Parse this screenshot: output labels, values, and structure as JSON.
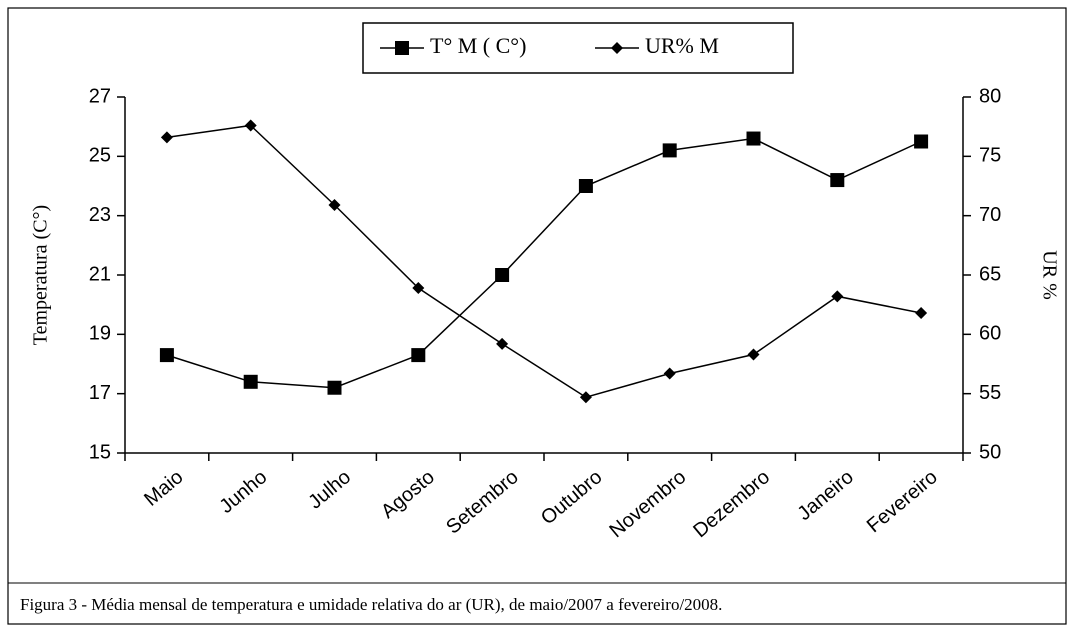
{
  "chart_data": {
    "type": "line",
    "categories": [
      "Maio",
      "Junho",
      "Julho",
      "Agosto",
      "Setembro",
      "Outubro",
      "Novembro",
      "Dezembro",
      "Janeiro",
      "Fevereiro"
    ],
    "series": [
      {
        "name": "T° M ( C°)",
        "color": "#000000",
        "marker": "square",
        "values": [
          18.3,
          17.4,
          17.2,
          18.3,
          21.0,
          24.0,
          25.2,
          25.6,
          24.2,
          25.5
        ]
      },
      {
        "name": "UR% M",
        "color": "#000000",
        "marker": "diamond",
        "axis": "y2",
        "values": [
          76.6,
          77.6,
          70.9,
          63.9,
          59.2,
          54.7,
          56.7,
          58.3,
          63.2,
          61.8
        ]
      }
    ],
    "ylabel": "Temperatura (C°)",
    "y2label": "UR %",
    "ylim": [
      15,
      27
    ],
    "yticks": [
      15,
      17,
      19,
      21,
      23,
      25,
      27
    ],
    "y2lim": [
      50,
      80
    ],
    "y2ticks": [
      50,
      55,
      60,
      65,
      70,
      75,
      80
    ],
    "grid": false,
    "legend": "top",
    "caption": "Figura 3 - Média mensal de temperatura e umidade relativa do ar (UR), de maio/2007 a fevereiro/2008."
  }
}
